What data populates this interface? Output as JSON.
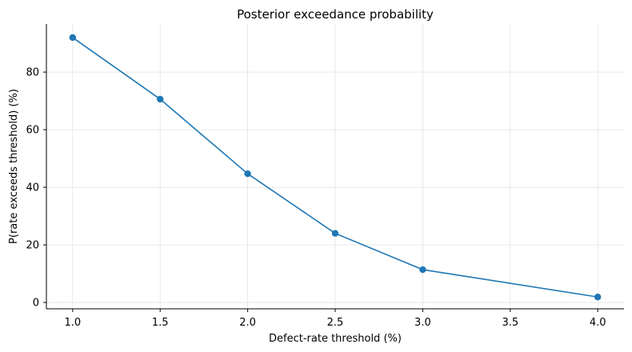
{
  "chart_data": {
    "type": "line",
    "title": "Posterior exceedance probability",
    "xlabel": "Defect-rate threshold (%)",
    "ylabel": "P(rate exceeds threshold) (%)",
    "x": [
      1.0,
      1.5,
      2.0,
      2.5,
      3.0,
      4.0
    ],
    "series": [
      {
        "values": [
          92.0,
          70.6,
          44.7,
          24.0,
          11.4,
          1.9
        ],
        "color": "#1f77b4",
        "marker": "circle"
      }
    ],
    "xlim": [
      0.85,
      4.15
    ],
    "ylim": [
      -2.2,
      96.7
    ],
    "xticks": [
      1.0,
      1.5,
      2.0,
      2.5,
      3.0,
      3.5,
      4.0
    ],
    "xtick_labels": [
      "1.0",
      "1.5",
      "2.0",
      "2.5",
      "3.0",
      "3.5",
      "4.0"
    ],
    "yticks": [
      0,
      20,
      40,
      60,
      80
    ],
    "ytick_labels": [
      "0",
      "20",
      "40",
      "60",
      "80"
    ],
    "grid": true,
    "spines": [
      "left",
      "bottom"
    ]
  }
}
